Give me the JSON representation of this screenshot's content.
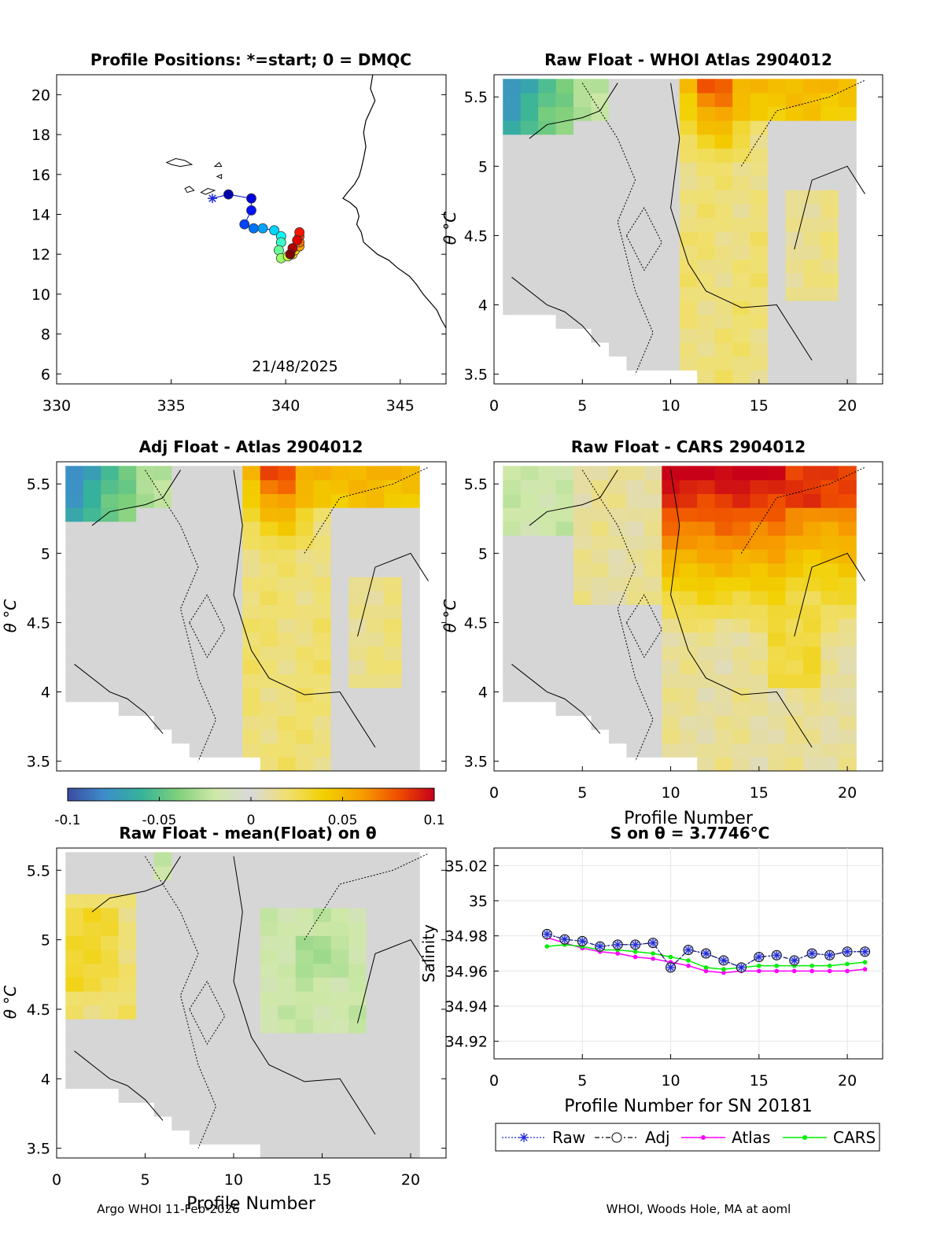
{
  "colors": {
    "axis": "#000000",
    "grid": "#e6e6e6",
    "raw": "#1f2ad6",
    "adj": "#000000",
    "atlas": "#ff00ff",
    "cars": "#00ee00",
    "masked": "#d6d6d6"
  },
  "colormap": {
    "stops": [
      "#3b4ca0",
      "#3d8dca",
      "#35b39a",
      "#7fd07a",
      "#cfe8a8",
      "#d9d9d9",
      "#f0e070",
      "#f2d000",
      "#f7a000",
      "#f05000",
      "#c80018"
    ],
    "ticks": [
      "-0.1",
      "-0.05",
      "0",
      "0.05",
      "0.1"
    ],
    "range": [
      -0.1,
      0.1
    ]
  },
  "footer": {
    "left": "Argo WHOI 11-Feb-2026",
    "right": "WHOI, Woods Hole, MA at aoml"
  },
  "chart_data": [
    {
      "id": "map",
      "type": "scatter",
      "title": "Profile Positions: *=start; 0 = DMQC",
      "xlim": [
        330,
        347
      ],
      "ylim": [
        5.5,
        21
      ],
      "xticks": [
        "330",
        "335",
        "340",
        "345"
      ],
      "yticks": [
        "6",
        "8",
        "10",
        "12",
        "14",
        "16",
        "18",
        "20"
      ],
      "annotation": "21/48/2025",
      "x": [
        336.8,
        337.5,
        338.5,
        338.5,
        338.2,
        338.6,
        339.0,
        339.5,
        339.8,
        339.8,
        339.7,
        339.8,
        340.1,
        340.3,
        340.4,
        340.6,
        340.6,
        340.6,
        340.6,
        340.5,
        340.3,
        340.2
      ],
      "y": [
        14.8,
        15.0,
        14.8,
        14.2,
        13.5,
        13.3,
        13.3,
        13.2,
        12.9,
        12.6,
        12.2,
        11.8,
        11.9,
        12.0,
        12.2,
        12.4,
        12.6,
        12.9,
        13.1,
        12.7,
        12.3,
        12.0
      ]
    },
    {
      "id": "raw-atlas",
      "type": "heatmap",
      "title": "Raw Float - WHOI Atlas  2904012",
      "xlim": [
        0,
        22
      ],
      "ylim": [
        3.43,
        5.66
      ],
      "xticks": [
        "0",
        "5",
        "10",
        "15",
        "20"
      ],
      "yticks": [
        "3.5",
        "4",
        "4.5",
        "5",
        "5.5"
      ],
      "ylabel": "θ °C",
      "xlabel": ""
    },
    {
      "id": "adj-atlas",
      "type": "heatmap",
      "title": "Adj Float - Atlas  2904012",
      "xlim": [
        0,
        22
      ],
      "ylim": [
        3.43,
        5.66
      ],
      "xticks": [],
      "yticks": [
        "3.5",
        "4",
        "4.5",
        "5",
        "5.5"
      ],
      "ylabel": "θ °C",
      "xlabel": ""
    },
    {
      "id": "raw-cars",
      "type": "heatmap",
      "title": "Raw Float - CARS  2904012",
      "xlim": [
        0,
        22
      ],
      "ylim": [
        3.43,
        5.66
      ],
      "xticks": [
        "0",
        "5",
        "10",
        "15",
        "20"
      ],
      "yticks": [
        "3.5",
        "4",
        "4.5",
        "5",
        "5.5"
      ],
      "ylabel": "θ °C",
      "xlabel": "Profile Number"
    },
    {
      "id": "raw-mean",
      "type": "heatmap",
      "title": "Raw Float - mean(Float) on θ",
      "xlim": [
        0,
        22
      ],
      "ylim": [
        3.43,
        5.66
      ],
      "xticks": [
        "0",
        "5",
        "10",
        "15",
        "20"
      ],
      "yticks": [
        "3.5",
        "4",
        "4.5",
        "5",
        "5.5"
      ],
      "ylabel": "θ °C",
      "xlabel": "Profile Number"
    },
    {
      "id": "salinity",
      "type": "line",
      "title": "S on θ = 3.7746°C",
      "xlim": [
        0,
        22
      ],
      "ylim": [
        34.91,
        35.03
      ],
      "xticks": [
        "0",
        "5",
        "10",
        "15",
        "20"
      ],
      "yticks": [
        "34.92",
        "34.94",
        "34.96",
        "34.98",
        "35",
        "35.02"
      ],
      "ylabel": "Salinity",
      "xlabel": "Profile Number for SN 20181",
      "x": [
        3,
        4,
        5,
        6,
        7,
        8,
        9,
        10,
        11,
        12,
        13,
        14,
        15,
        16,
        17,
        18,
        19,
        20,
        21
      ],
      "series": [
        {
          "name": "Raw",
          "values": [
            34.981,
            34.978,
            34.977,
            34.974,
            34.975,
            34.975,
            34.976,
            34.962,
            34.972,
            34.97,
            34.966,
            34.962,
            34.968,
            34.969,
            34.966,
            34.97,
            34.969,
            34.971,
            34.971
          ]
        },
        {
          "name": "Adj",
          "values": [
            34.981,
            34.978,
            34.977,
            34.974,
            34.975,
            34.975,
            34.976,
            34.962,
            34.972,
            34.97,
            34.966,
            34.962,
            34.968,
            34.969,
            34.966,
            34.97,
            34.969,
            34.971,
            34.971
          ]
        },
        {
          "name": "Atlas",
          "values": [
            34.979,
            34.976,
            34.973,
            34.971,
            34.97,
            34.968,
            34.967,
            34.965,
            34.963,
            34.96,
            34.959,
            34.96,
            34.96,
            34.96,
            34.96,
            34.96,
            34.96,
            34.96,
            34.961
          ]
        },
        {
          "name": "CARS",
          "values": [
            34.974,
            34.975,
            34.974,
            34.972,
            34.972,
            34.971,
            34.97,
            34.968,
            34.966,
            34.962,
            34.961,
            34.962,
            34.963,
            34.963,
            34.963,
            34.963,
            34.963,
            34.964,
            34.965
          ]
        }
      ]
    }
  ]
}
